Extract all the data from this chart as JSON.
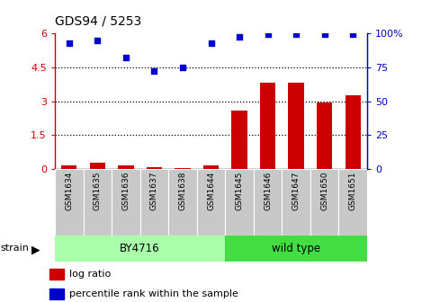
{
  "title": "GDS94 / 5253",
  "samples": [
    "GSM1634",
    "GSM1635",
    "GSM1636",
    "GSM1637",
    "GSM1638",
    "GSM1644",
    "GSM1645",
    "GSM1646",
    "GSM1647",
    "GSM1650",
    "GSM1651"
  ],
  "log_ratio": [
    0.15,
    0.28,
    0.15,
    0.07,
    0.03,
    0.18,
    2.6,
    3.8,
    3.8,
    2.95,
    3.25
  ],
  "percentile_rank": [
    93,
    95,
    82,
    72,
    75,
    93,
    97,
    99,
    99,
    99,
    99
  ],
  "groups": [
    {
      "label": "BY4716",
      "start": 0,
      "end": 6,
      "color": "#aaffaa"
    },
    {
      "label": "wild type",
      "start": 6,
      "end": 11,
      "color": "#44dd44"
    }
  ],
  "bar_color": "#cc0000",
  "dot_color": "#0000cc",
  "left_ylim": [
    0,
    6
  ],
  "right_ylim": [
    0,
    100
  ],
  "left_yticks": [
    0,
    1.5,
    3.0,
    4.5,
    6.0
  ],
  "right_yticks": [
    0,
    25,
    50,
    75,
    100
  ],
  "left_ytick_labels": [
    "0",
    "1.5",
    "3",
    "4.5",
    "6"
  ],
  "right_ytick_labels": [
    "0",
    "25",
    "50",
    "75",
    "100%"
  ],
  "hlines": [
    1.5,
    3.0,
    4.5
  ],
  "left_axis_color": "#cc0000",
  "right_axis_color": "#0000cc",
  "legend_log_ratio": "log ratio",
  "legend_percentile": "percentile rank within the sample",
  "tick_bg_color": "#c8c8c8",
  "tick_border_color": "#ffffff",
  "strain_label": "strain"
}
